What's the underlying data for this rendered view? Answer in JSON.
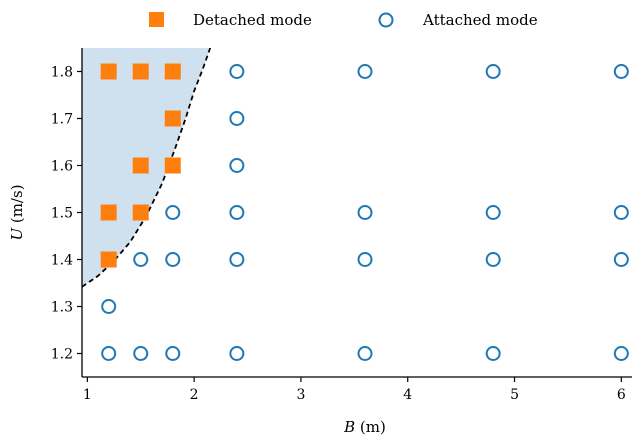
{
  "chart_data": {
    "type": "scatter",
    "title": "",
    "xlabel_var": "B",
    "xlabel_unit": "(m)",
    "ylabel_var": "U",
    "ylabel_unit": "(m/s)",
    "xlim": [
      0.95,
      6.1
    ],
    "ylim": [
      1.15,
      1.85
    ],
    "xticks": [
      1,
      2,
      3,
      4,
      5,
      6
    ],
    "yticks": [
      1.2,
      1.3,
      1.4,
      1.5,
      1.6,
      1.7,
      1.8
    ],
    "grid": false,
    "legend_position": "top-center",
    "series": [
      {
        "name": "Detached mode",
        "marker": "filled-square",
        "color": "#ff7f0e",
        "points": [
          {
            "x": 1.2,
            "y": 1.8
          },
          {
            "x": 1.5,
            "y": 1.8
          },
          {
            "x": 1.8,
            "y": 1.8
          },
          {
            "x": 1.8,
            "y": 1.7
          },
          {
            "x": 1.5,
            "y": 1.6
          },
          {
            "x": 1.8,
            "y": 1.6
          },
          {
            "x": 1.2,
            "y": 1.5
          },
          {
            "x": 1.5,
            "y": 1.5
          },
          {
            "x": 1.2,
            "y": 1.4
          }
        ]
      },
      {
        "name": "Attached mode",
        "marker": "hollow-circle",
        "color": "#1f77b4",
        "points": [
          {
            "x": 2.4,
            "y": 1.8
          },
          {
            "x": 3.6,
            "y": 1.8
          },
          {
            "x": 4.8,
            "y": 1.8
          },
          {
            "x": 6.0,
            "y": 1.8
          },
          {
            "x": 2.4,
            "y": 1.7
          },
          {
            "x": 2.4,
            "y": 1.6
          },
          {
            "x": 1.8,
            "y": 1.5
          },
          {
            "x": 2.4,
            "y": 1.5
          },
          {
            "x": 3.6,
            "y": 1.5
          },
          {
            "x": 4.8,
            "y": 1.5
          },
          {
            "x": 6.0,
            "y": 1.5
          },
          {
            "x": 1.5,
            "y": 1.4
          },
          {
            "x": 1.8,
            "y": 1.4
          },
          {
            "x": 2.4,
            "y": 1.4
          },
          {
            "x": 3.6,
            "y": 1.4
          },
          {
            "x": 4.8,
            "y": 1.4
          },
          {
            "x": 6.0,
            "y": 1.4
          },
          {
            "x": 1.2,
            "y": 1.3
          },
          {
            "x": 1.2,
            "y": 1.2
          },
          {
            "x": 1.5,
            "y": 1.2
          },
          {
            "x": 1.8,
            "y": 1.2
          },
          {
            "x": 2.4,
            "y": 1.2
          },
          {
            "x": 3.6,
            "y": 1.2
          },
          {
            "x": 4.8,
            "y": 1.2
          },
          {
            "x": 6.0,
            "y": 1.2
          }
        ]
      }
    ],
    "boundary": {
      "style": "dashed",
      "color": "#000000",
      "region_fill": "#cfe0ee",
      "points": [
        {
          "x": 0.95,
          "y": 1.342
        },
        {
          "x": 1.1,
          "y": 1.365
        },
        {
          "x": 1.25,
          "y": 1.397
        },
        {
          "x": 1.4,
          "y": 1.437
        },
        {
          "x": 1.55,
          "y": 1.492
        },
        {
          "x": 1.7,
          "y": 1.562
        },
        {
          "x": 1.82,
          "y": 1.635
        },
        {
          "x": 1.92,
          "y": 1.7
        },
        {
          "x": 2.0,
          "y": 1.758
        },
        {
          "x": 2.08,
          "y": 1.805
        },
        {
          "x": 2.15,
          "y": 1.85
        }
      ]
    }
  }
}
